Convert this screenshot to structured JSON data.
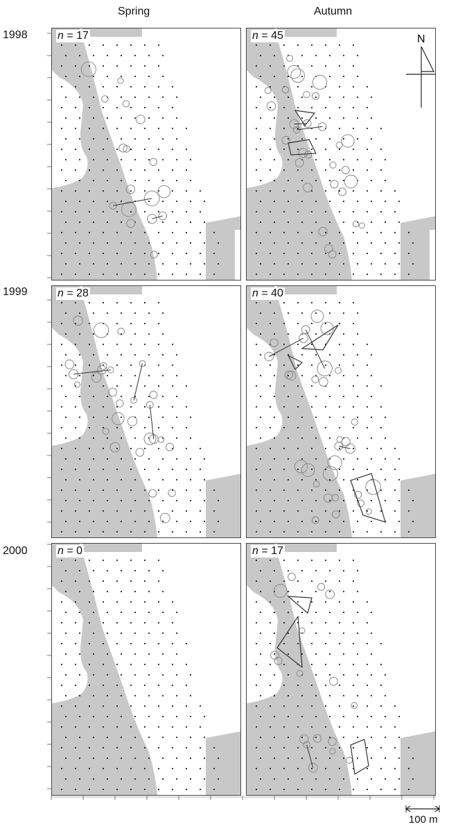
{
  "columns": [
    "Spring",
    "Autumn"
  ],
  "years": [
    "1998",
    "1999",
    "2000"
  ],
  "panels": [
    {
      "n": "17"
    },
    {
      "n": "45"
    },
    {
      "n": "28"
    },
    {
      "n": "40"
    },
    {
      "n": "0"
    },
    {
      "n": "17"
    }
  ],
  "north_label": "N",
  "scale_label": "100 m",
  "colors": {
    "shore": "#c8c8c8",
    "line": "#333333",
    "circle": "#8a8a8a"
  }
}
